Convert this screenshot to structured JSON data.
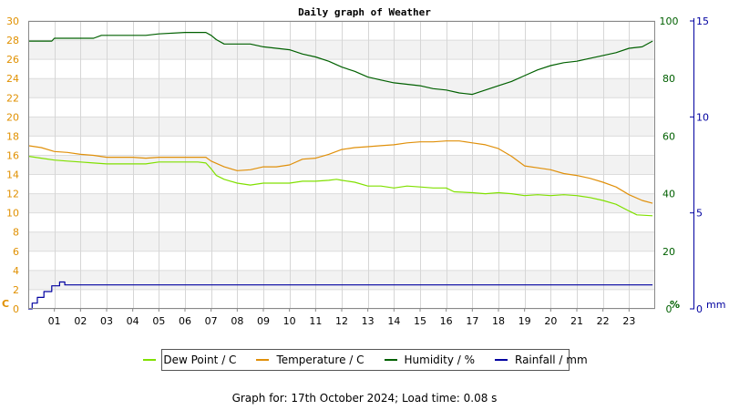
{
  "footer": {
    "prefix": "Graph for:",
    "date": "17th October 2024;",
    "load_label": "Load time:",
    "load_time": "0.08 s"
  },
  "colors": {
    "dew_point": "#80e000",
    "temperature": "#e0900a",
    "humidity": "#006000",
    "rainfall": "#0000a0",
    "c_axis": "#e09000",
    "pct_axis": "#006000",
    "mm_axis": "#0000a0"
  },
  "chart_data": {
    "type": "line",
    "title": "Daily graph of Weather",
    "grid": true,
    "legend_position": "bottom",
    "x_ticks": [
      "01",
      "02",
      "03",
      "04",
      "05",
      "06",
      "07",
      "08",
      "09",
      "10",
      "11",
      "12",
      "13",
      "14",
      "15",
      "16",
      "17",
      "18",
      "19",
      "20",
      "21",
      "22",
      "23"
    ],
    "xlim": [
      0,
      24
    ],
    "axes": {
      "left": {
        "unit": "C",
        "ticks": [
          0,
          2,
          4,
          6,
          8,
          10,
          12,
          14,
          16,
          18,
          20,
          22,
          24,
          26,
          28,
          30
        ],
        "range": [
          0,
          30
        ]
      },
      "right_pct": {
        "unit": "%",
        "ticks": [
          0,
          20,
          40,
          60,
          80,
          100
        ],
        "range": [
          0,
          100
        ]
      },
      "right_mm": {
        "unit": "mm",
        "ticks": [
          0,
          5,
          10,
          15
        ],
        "range": [
          0,
          15
        ]
      }
    },
    "series": [
      {
        "name": "Dew Point / C",
        "axis": "left",
        "color": "#80e000",
        "points": [
          [
            0,
            15.9
          ],
          [
            0.5,
            15.7
          ],
          [
            1,
            15.5
          ],
          [
            1.5,
            15.4
          ],
          [
            2,
            15.3
          ],
          [
            2.5,
            15.2
          ],
          [
            3,
            15.1
          ],
          [
            3.5,
            15.1
          ],
          [
            4,
            15.1
          ],
          [
            4.5,
            15.1
          ],
          [
            5,
            15.3
          ],
          [
            5.5,
            15.3
          ],
          [
            6,
            15.3
          ],
          [
            6.5,
            15.3
          ],
          [
            6.8,
            15.2
          ],
          [
            7,
            14.6
          ],
          [
            7.2,
            13.9
          ],
          [
            7.5,
            13.5
          ],
          [
            8,
            13.1
          ],
          [
            8.5,
            12.9
          ],
          [
            9,
            13.1
          ],
          [
            9.5,
            13.1
          ],
          [
            10,
            13.1
          ],
          [
            10.5,
            13.3
          ],
          [
            11,
            13.3
          ],
          [
            11.5,
            13.4
          ],
          [
            11.8,
            13.5
          ],
          [
            12,
            13.4
          ],
          [
            12.5,
            13.2
          ],
          [
            13,
            12.8
          ],
          [
            13.5,
            12.8
          ],
          [
            14,
            12.6
          ],
          [
            14.5,
            12.8
          ],
          [
            15,
            12.7
          ],
          [
            15.5,
            12.6
          ],
          [
            16,
            12.6
          ],
          [
            16.3,
            12.2
          ],
          [
            17,
            12.1
          ],
          [
            17.5,
            12.0
          ],
          [
            18,
            12.1
          ],
          [
            18.5,
            12.0
          ],
          [
            19,
            11.8
          ],
          [
            19.5,
            11.9
          ],
          [
            20,
            11.8
          ],
          [
            20.5,
            11.9
          ],
          [
            21,
            11.8
          ],
          [
            21.5,
            11.6
          ],
          [
            22,
            11.3
          ],
          [
            22.5,
            10.9
          ],
          [
            23,
            10.2
          ],
          [
            23.3,
            9.8
          ],
          [
            23.9,
            9.7
          ]
        ]
      },
      {
        "name": "Temperature / C",
        "axis": "left",
        "color": "#e0900a",
        "points": [
          [
            0,
            17.0
          ],
          [
            0.5,
            16.8
          ],
          [
            1,
            16.4
          ],
          [
            1.5,
            16.3
          ],
          [
            2,
            16.1
          ],
          [
            2.5,
            16.0
          ],
          [
            3,
            15.8
          ],
          [
            4,
            15.8
          ],
          [
            4.5,
            15.7
          ],
          [
            5,
            15.8
          ],
          [
            6,
            15.8
          ],
          [
            6.8,
            15.8
          ],
          [
            7,
            15.4
          ],
          [
            7.5,
            14.8
          ],
          [
            8,
            14.4
          ],
          [
            8.5,
            14.5
          ],
          [
            9,
            14.8
          ],
          [
            9.5,
            14.8
          ],
          [
            10,
            15.0
          ],
          [
            10.5,
            15.6
          ],
          [
            11,
            15.7
          ],
          [
            11.5,
            16.1
          ],
          [
            12,
            16.6
          ],
          [
            12.5,
            16.8
          ],
          [
            13,
            16.9
          ],
          [
            13.5,
            17.0
          ],
          [
            14,
            17.1
          ],
          [
            14.5,
            17.3
          ],
          [
            15,
            17.4
          ],
          [
            15.5,
            17.4
          ],
          [
            16,
            17.5
          ],
          [
            16.5,
            17.5
          ],
          [
            17,
            17.3
          ],
          [
            17.5,
            17.1
          ],
          [
            18,
            16.7
          ],
          [
            18.5,
            15.9
          ],
          [
            19,
            14.9
          ],
          [
            19.5,
            14.7
          ],
          [
            20,
            14.5
          ],
          [
            20.5,
            14.1
          ],
          [
            21,
            13.9
          ],
          [
            21.5,
            13.6
          ],
          [
            22,
            13.2
          ],
          [
            22.5,
            12.7
          ],
          [
            23,
            11.9
          ],
          [
            23.5,
            11.3
          ],
          [
            23.9,
            11.0
          ]
        ]
      },
      {
        "name": "Humidity / %",
        "axis": "right_pct",
        "color": "#006000",
        "points": [
          [
            0,
            93.0
          ],
          [
            0.9,
            93.0
          ],
          [
            1,
            94.0
          ],
          [
            2.5,
            94.0
          ],
          [
            2.8,
            95.0
          ],
          [
            4.5,
            95.0
          ],
          [
            5,
            95.5
          ],
          [
            6,
            96.0
          ],
          [
            6.8,
            96.0
          ],
          [
            7,
            95.0
          ],
          [
            7.2,
            93.5
          ],
          [
            7.5,
            92.0
          ],
          [
            8.5,
            92.0
          ],
          [
            9,
            91.0
          ],
          [
            10,
            90.0
          ],
          [
            10.5,
            88.5
          ],
          [
            11,
            87.5
          ],
          [
            11.5,
            86.0
          ],
          [
            12,
            84.0
          ],
          [
            12.5,
            82.5
          ],
          [
            13,
            80.5
          ],
          [
            13.5,
            79.5
          ],
          [
            14,
            78.5
          ],
          [
            14.5,
            78.0
          ],
          [
            15,
            77.5
          ],
          [
            15.5,
            76.5
          ],
          [
            16,
            76.0
          ],
          [
            16.5,
            75.0
          ],
          [
            17,
            74.5
          ],
          [
            17.5,
            76.0
          ],
          [
            18,
            77.5
          ],
          [
            18.5,
            79.0
          ],
          [
            19,
            81.0
          ],
          [
            19.5,
            83.0
          ],
          [
            20,
            84.5
          ],
          [
            20.5,
            85.5
          ],
          [
            21,
            86.0
          ],
          [
            21.5,
            87.0
          ],
          [
            22,
            88.0
          ],
          [
            22.5,
            89.0
          ],
          [
            23,
            90.5
          ],
          [
            23.5,
            91.0
          ],
          [
            23.9,
            93.0
          ]
        ]
      },
      {
        "name": "Rainfall / mm",
        "axis": "right_mm",
        "color": "#0000a0",
        "points": [
          [
            0,
            0.0
          ],
          [
            0.15,
            0.3
          ],
          [
            0.35,
            0.6
          ],
          [
            0.6,
            0.9
          ],
          [
            0.9,
            1.2
          ],
          [
            1.2,
            1.4
          ],
          [
            1.4,
            1.25
          ],
          [
            1.45,
            1.25
          ],
          [
            23.9,
            1.25
          ]
        ]
      }
    ],
    "labels": {
      "left_unit": "C",
      "pct_unit": "%",
      "mm_unit": "mm"
    }
  },
  "legend": [
    {
      "label": "Dew Point / C",
      "color": "#80e000"
    },
    {
      "label": "Temperature / C",
      "color": "#e0900a"
    },
    {
      "label": "Humidity / %",
      "color": "#006000"
    },
    {
      "label": "Rainfall / mm",
      "color": "#0000a0"
    }
  ]
}
